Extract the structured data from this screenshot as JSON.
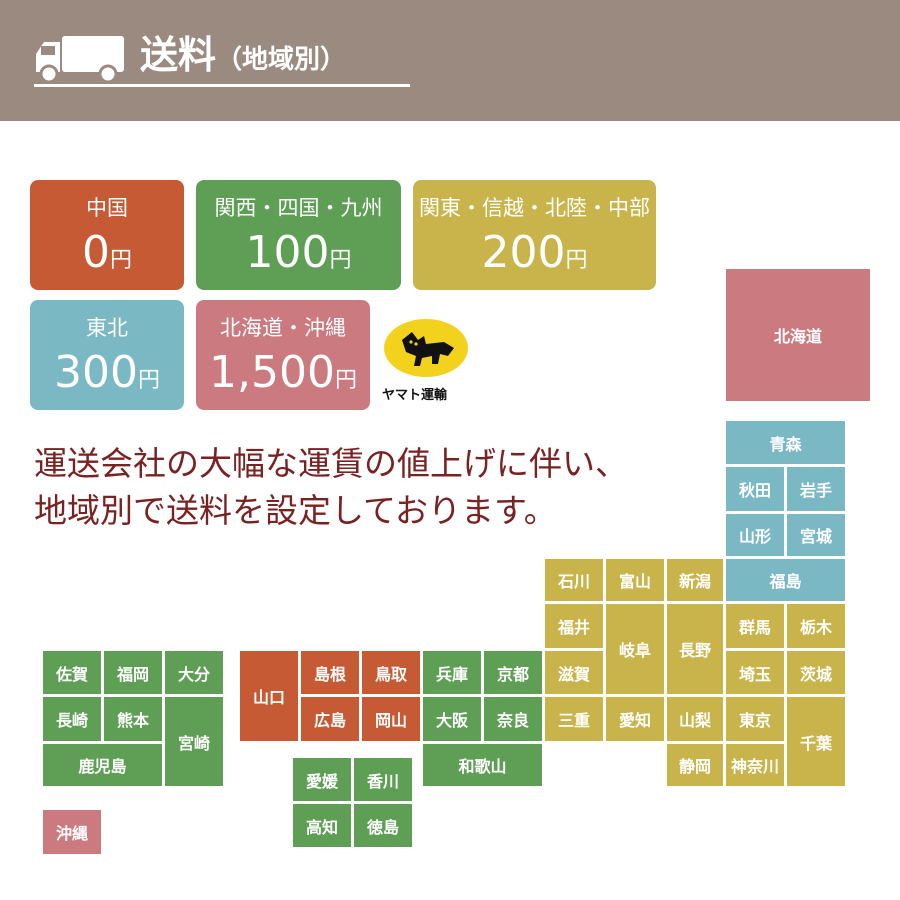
{
  "header": {
    "title": "送料",
    "subtitle": "（地域別）",
    "bg_color": "#9b8a80",
    "icon": "truck-icon"
  },
  "price_boxes": [
    {
      "region": "中国",
      "amount": "0",
      "unit": "円",
      "color": "#c65a35"
    },
    {
      "region": "関西・四国・九州",
      "amount": "100",
      "unit": "円",
      "color": "#5e9e55"
    },
    {
      "region": "関東・信越・北陸・中部",
      "amount": "200",
      "unit": "円",
      "color": "#c8b44a"
    },
    {
      "region": "東北",
      "amount": "300",
      "unit": "円",
      "color": "#7ab8c4"
    },
    {
      "region": "北海道・沖縄",
      "amount": "1,500",
      "unit": "円",
      "color": "#cb7a80"
    }
  ],
  "logo": {
    "text": "ヤマト運輸",
    "icon": "yamato-cat-logo-icon"
  },
  "message": {
    "line1": "運送会社の大幅な運賃の値上げに伴い、",
    "line2": "地域別で送料を設定しております。"
  },
  "prefectures": {
    "hokkaido": "北海道",
    "aomori": "青森",
    "akita": "秋田",
    "iwate": "岩手",
    "yamagata": "山形",
    "miyagi": "宮城",
    "fukushima": "福島",
    "ishikawa": "石川",
    "toyama": "富山",
    "niigata": "新潟",
    "fukui": "福井",
    "gifu": "岐阜",
    "nagano": "長野",
    "shiga": "滋賀",
    "mie": "三重",
    "aichi": "愛知",
    "yamanashi": "山梨",
    "shizuoka": "静岡",
    "gunma": "群馬",
    "tochigi": "栃木",
    "saitama": "埼玉",
    "ibaraki": "茨城",
    "tokyo": "東京",
    "kanagawa": "神奈川",
    "chiba": "千葉",
    "yamaguchi": "山口",
    "shimane": "島根",
    "tottori": "鳥取",
    "hiroshima": "広島",
    "okayama": "岡山",
    "hyogo": "兵庫",
    "kyoto": "京都",
    "osaka": "大阪",
    "nara": "奈良",
    "wakayama": "和歌山",
    "ehime": "愛媛",
    "kagawa": "香川",
    "kochi": "高知",
    "tokushima": "徳島",
    "saga": "佐賀",
    "fukuoka": "福岡",
    "oita": "大分",
    "nagasaki": "長崎",
    "kumamoto": "熊本",
    "miyazaki": "宮崎",
    "kagoshima": "鹿児島",
    "okinawa": "沖縄"
  }
}
